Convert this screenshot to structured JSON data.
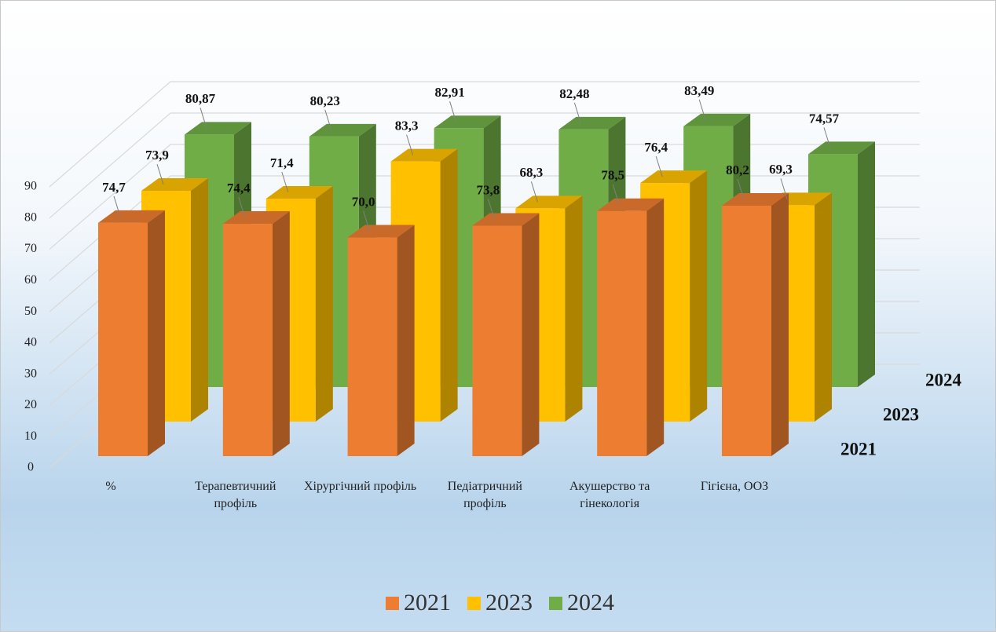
{
  "chart_data": {
    "type": "bar3d",
    "categories": [
      "%",
      "Терапевтичний профіль",
      "Хірургічний профіль",
      "Педіатричний профіль",
      "Акушерство та гінекологія",
      "Гігієна, ООЗ"
    ],
    "series": [
      {
        "name": "2021",
        "color": "#ed7d31",
        "values": [
          74.7,
          74.4,
          70.0,
          73.8,
          78.5,
          80.2
        ],
        "value_labels": [
          "74,7",
          "74,4",
          "70,0",
          "73,8",
          "78,5",
          "80,2"
        ]
      },
      {
        "name": "2023",
        "color": "#ffc000",
        "values": [
          73.9,
          71.4,
          83.3,
          68.3,
          76.4,
          69.3
        ],
        "value_labels": [
          "73,9",
          "71,4",
          "83,3",
          "68,3",
          "76,4",
          "69,3"
        ]
      },
      {
        "name": "2024",
        "color": "#70ad47",
        "values": [
          80.87,
          80.23,
          82.91,
          82.48,
          83.49,
          74.57
        ],
        "value_labels": [
          "80,87",
          "80,23",
          "82,91",
          "82,48",
          "83,49",
          "74,57"
        ]
      }
    ],
    "ylim": [
      0,
      90
    ],
    "yticks": [
      0,
      10,
      20,
      30,
      40,
      50,
      60,
      70,
      80,
      90
    ],
    "grid": true,
    "legend": "bottom"
  }
}
